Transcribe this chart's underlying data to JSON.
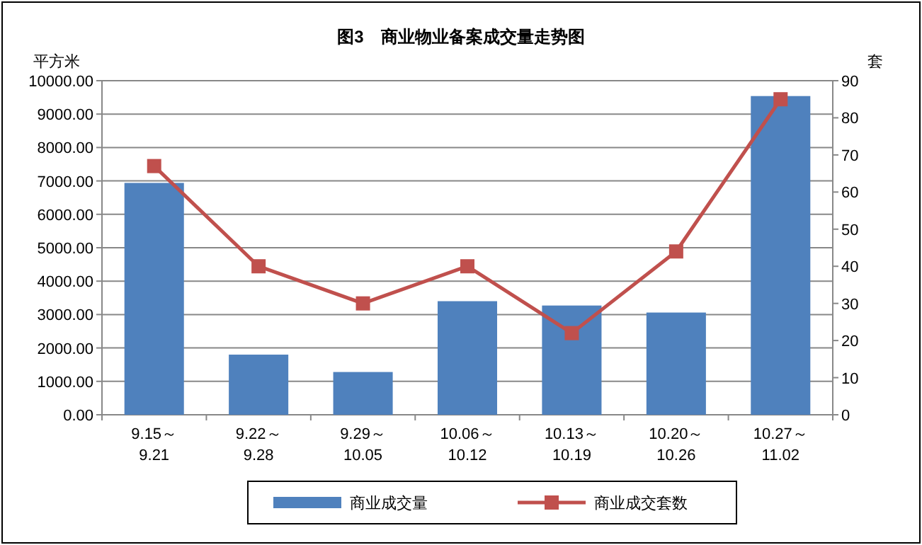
{
  "chart_data": {
    "type": "bar",
    "title": "图3　商业物业备案成交量走势图",
    "ylabel": "平方米",
    "y2label": "套",
    "categories": [
      "9.15～\n9.21",
      "9.22～\n9.28",
      "9.29～\n10.05",
      "10.06～\n10.12",
      "10.13～\n10.19",
      "10.20～\n10.26",
      "10.27～\n11.02"
    ],
    "series": [
      {
        "name": "商业成交量",
        "color": "#4f81bd",
        "values": [
          6940,
          1800,
          1280,
          3400,
          3270,
          3060,
          9540
        ]
      },
      {
        "name": "商业成交套数",
        "type": "line",
        "axis": "y2",
        "color": "#c0504d",
        "marker": "square",
        "values": [
          67,
          40,
          30,
          40,
          22,
          44,
          85
        ]
      }
    ],
    "ylim": [
      0,
      10000
    ],
    "yticks": [
      {
        "value": 0,
        "label": "0.00"
      },
      {
        "value": 1000,
        "label": "1000.00"
      },
      {
        "value": 2000,
        "label": "2000.00"
      },
      {
        "value": 3000,
        "label": "3000.00"
      },
      {
        "value": 4000,
        "label": "4000.00"
      },
      {
        "value": 5000,
        "label": "5000.00"
      },
      {
        "value": 6000,
        "label": "6000.00"
      },
      {
        "value": 7000,
        "label": "7000.00"
      },
      {
        "value": 8000,
        "label": "8000.00"
      },
      {
        "value": 9000,
        "label": "9000.00"
      },
      {
        "value": 10000,
        "label": "10000.00"
      }
    ],
    "y2lim": [
      0,
      90
    ],
    "y2ticks": [
      0,
      10,
      20,
      30,
      40,
      50,
      60,
      70,
      80,
      90
    ],
    "grid": "y",
    "legend": "bottom"
  }
}
